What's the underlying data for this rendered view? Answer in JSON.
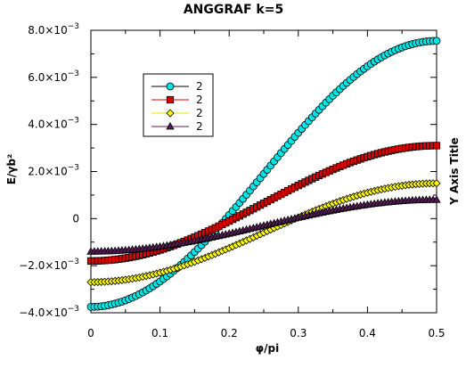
{
  "chart_data": {
    "type": "line",
    "title": "ANGGRAF k=5",
    "xlabel": "φ/pi",
    "ylabel": "E/γb²",
    "y2label": "Y Axis Title",
    "xlim": [
      0,
      0.5
    ],
    "ylim": [
      -0.004,
      0.008
    ],
    "x_ticks": [
      0,
      0.1,
      0.2,
      0.3,
      0.4,
      0.5
    ],
    "x_tick_labels": [
      "0",
      "0.1",
      "0.2",
      "0.3",
      "0.4",
      "0.5"
    ],
    "y_ticks": [
      -0.004,
      -0.002,
      0,
      0.002,
      0.004,
      0.006,
      0.008
    ],
    "y_tick_labels": [
      {
        "mant": "−4.0×10",
        "exp": "−3"
      },
      {
        "mant": "−2.0×10",
        "exp": "−3"
      },
      {
        "mant": "0",
        "exp": ""
      },
      {
        "mant": "2.0×10",
        "exp": "−3"
      },
      {
        "mant": "4.0×10",
        "exp": "−3"
      },
      {
        "mant": "6.0×10",
        "exp": "−3"
      },
      {
        "mant": "8.0×10",
        "exp": "−3"
      }
    ],
    "grid": false,
    "legend_position": "upper-left",
    "points_per_series": 101,
    "series": [
      {
        "name": "2",
        "marker": "circle",
        "color": "#00e5e5",
        "stroke": "#000000",
        "line_color": "#000000",
        "center": 0.0019,
        "amplitude": 0.00565
      },
      {
        "name": "2",
        "marker": "square",
        "color": "#dd0000",
        "stroke": "#000000",
        "line_color": "#dd0000",
        "center": 0.00065,
        "amplitude": 0.00245
      },
      {
        "name": "2",
        "marker": "diamond",
        "color": "#ffff00",
        "stroke": "#000000",
        "line_color": "#e5e500",
        "center": -0.0006,
        "amplitude": 0.0021
      },
      {
        "name": "2",
        "marker": "triangle",
        "color": "#551a55",
        "stroke": "#000000",
        "line_color": "#551a55",
        "center": -0.0003,
        "amplitude": 0.0011
      }
    ]
  }
}
